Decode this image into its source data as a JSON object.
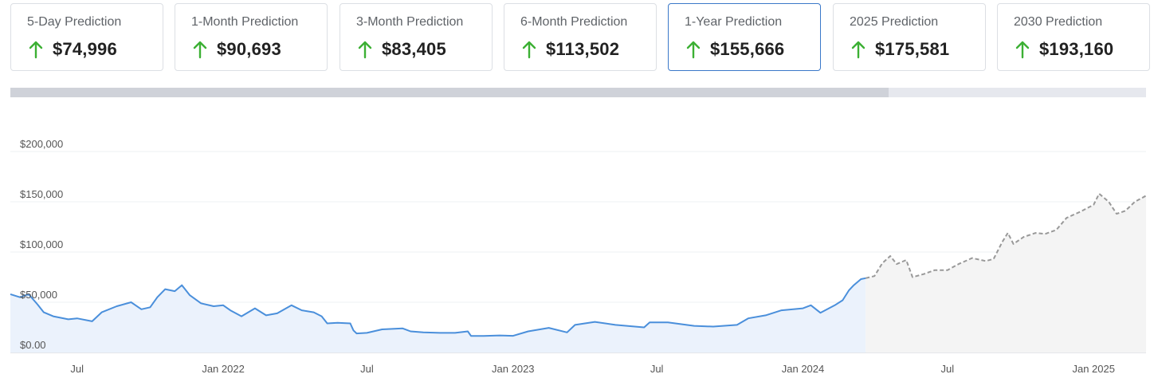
{
  "cards": [
    {
      "title": "5-Day Prediction",
      "value": "$74,996",
      "icon": "arrow-up-icon",
      "active": false
    },
    {
      "title": "1-Month Prediction",
      "value": "$90,693",
      "icon": "arrow-up-icon",
      "active": false
    },
    {
      "title": "3-Month Prediction",
      "value": "$83,405",
      "icon": "arrow-up-icon",
      "active": false
    },
    {
      "title": "6-Month Prediction",
      "value": "$113,502",
      "icon": "arrow-up-icon",
      "active": false
    },
    {
      "title": "1-Year Prediction",
      "value": "$155,666",
      "icon": "arrow-up-icon",
      "active": true
    },
    {
      "title": "2025 Prediction",
      "value": "$175,581",
      "icon": "arrow-up-icon",
      "active": false
    },
    {
      "title": "2030 Prediction",
      "value": "$193,160",
      "icon": "arrow-up-icon",
      "active": false
    }
  ],
  "colors": {
    "up_arrow": "#3cb034",
    "history_line": "#4a8fdb",
    "history_fill": "#ebf2fc",
    "forecast_line": "#999999",
    "forecast_fill": "#f4f4f4",
    "active_border": "#3a78c9"
  },
  "scroll": {
    "visible_fraction": 0.773
  },
  "chart_data": {
    "type": "line",
    "title": "",
    "xlabel": "",
    "ylabel": "",
    "ylim": [
      0,
      200000
    ],
    "yticks": [
      {
        "value": 0,
        "label": "$0.00"
      },
      {
        "value": 50000,
        "label": "$50,000"
      },
      {
        "value": 100000,
        "label": "$100,000"
      },
      {
        "value": 150000,
        "label": "$150,000"
      },
      {
        "value": 200000,
        "label": "$200,000"
      }
    ],
    "xlim": [
      "2021-04-08",
      "2025-03-08"
    ],
    "xticks": [
      {
        "date": "2021-07-01",
        "label": "Jul"
      },
      {
        "date": "2022-01-01",
        "label": "Jan 2022"
      },
      {
        "date": "2022-07-01",
        "label": "Jul"
      },
      {
        "date": "2023-01-01",
        "label": "Jan 2023"
      },
      {
        "date": "2023-07-01",
        "label": "Jul"
      },
      {
        "date": "2024-01-01",
        "label": "Jan 2024"
      },
      {
        "date": "2024-07-01",
        "label": "Jul"
      },
      {
        "date": "2025-01-01",
        "label": "Jan 2025"
      }
    ],
    "grid": true,
    "legend": "none",
    "series": [
      {
        "kind": "historical",
        "points": [
          [
            "2021-04-08",
            58000
          ],
          [
            "2021-04-20",
            55000
          ],
          [
            "2021-05-01",
            58000
          ],
          [
            "2021-05-12",
            48000
          ],
          [
            "2021-05-20",
            40000
          ],
          [
            "2021-06-01",
            36000
          ],
          [
            "2021-06-20",
            33000
          ],
          [
            "2021-07-01",
            34000
          ],
          [
            "2021-07-20",
            31000
          ],
          [
            "2021-08-01",
            40000
          ],
          [
            "2021-08-20",
            46000
          ],
          [
            "2021-09-07",
            50000
          ],
          [
            "2021-09-20",
            43000
          ],
          [
            "2021-10-01",
            45000
          ],
          [
            "2021-10-10",
            55000
          ],
          [
            "2021-10-20",
            63000
          ],
          [
            "2021-11-01",
            61000
          ],
          [
            "2021-11-10",
            67000
          ],
          [
            "2021-11-20",
            57000
          ],
          [
            "2021-12-04",
            49000
          ],
          [
            "2021-12-20",
            46000
          ],
          [
            "2022-01-01",
            47000
          ],
          [
            "2022-01-10",
            42000
          ],
          [
            "2022-01-24",
            36000
          ],
          [
            "2022-02-10",
            44000
          ],
          [
            "2022-02-24",
            37000
          ],
          [
            "2022-03-10",
            39000
          ],
          [
            "2022-03-28",
            47000
          ],
          [
            "2022-04-10",
            42000
          ],
          [
            "2022-04-25",
            40000
          ],
          [
            "2022-05-05",
            36000
          ],
          [
            "2022-05-12",
            29000
          ],
          [
            "2022-05-25",
            29500
          ],
          [
            "2022-06-10",
            29000
          ],
          [
            "2022-06-14",
            22000
          ],
          [
            "2022-06-18",
            19000
          ],
          [
            "2022-07-01",
            19500
          ],
          [
            "2022-07-20",
            23000
          ],
          [
            "2022-08-15",
            24000
          ],
          [
            "2022-08-25",
            21000
          ],
          [
            "2022-09-10",
            20000
          ],
          [
            "2022-10-01",
            19500
          ],
          [
            "2022-10-20",
            19500
          ],
          [
            "2022-11-05",
            21000
          ],
          [
            "2022-11-09",
            16500
          ],
          [
            "2022-11-25",
            16500
          ],
          [
            "2022-12-15",
            17000
          ],
          [
            "2023-01-01",
            16600
          ],
          [
            "2023-01-20",
            21000
          ],
          [
            "2023-02-15",
            24500
          ],
          [
            "2023-03-10",
            20000
          ],
          [
            "2023-03-20",
            27500
          ],
          [
            "2023-04-14",
            30500
          ],
          [
            "2023-05-10",
            27500
          ],
          [
            "2023-06-15",
            25000
          ],
          [
            "2023-06-22",
            30000
          ],
          [
            "2023-07-15",
            30000
          ],
          [
            "2023-08-17",
            26500
          ],
          [
            "2023-09-10",
            25800
          ],
          [
            "2023-10-10",
            27500
          ],
          [
            "2023-10-24",
            34000
          ],
          [
            "2023-11-15",
            37000
          ],
          [
            "2023-12-05",
            42000
          ],
          [
            "2024-01-01",
            44000
          ],
          [
            "2024-01-11",
            47000
          ],
          [
            "2024-01-23",
            39500
          ],
          [
            "2024-02-10",
            47000
          ],
          [
            "2024-02-20",
            52000
          ],
          [
            "2024-02-28",
            62000
          ],
          [
            "2024-03-05",
            67000
          ],
          [
            "2024-03-14",
            73000
          ],
          [
            "2024-03-20",
            74000
          ]
        ]
      },
      {
        "kind": "forecast",
        "points": [
          [
            "2024-03-20",
            74000
          ],
          [
            "2024-03-31",
            76000
          ],
          [
            "2024-04-10",
            89000
          ],
          [
            "2024-04-20",
            96000
          ],
          [
            "2024-04-28",
            88000
          ],
          [
            "2024-05-10",
            92000
          ],
          [
            "2024-05-18",
            75000
          ],
          [
            "2024-06-01",
            78000
          ],
          [
            "2024-06-15",
            82000
          ],
          [
            "2024-07-01",
            82000
          ],
          [
            "2024-07-15",
            88000
          ],
          [
            "2024-08-01",
            94000
          ],
          [
            "2024-08-18",
            91000
          ],
          [
            "2024-08-28",
            93000
          ],
          [
            "2024-09-08",
            110000
          ],
          [
            "2024-09-15",
            119000
          ],
          [
            "2024-09-22",
            108000
          ],
          [
            "2024-10-05",
            115000
          ],
          [
            "2024-10-20",
            119000
          ],
          [
            "2024-11-01",
            118000
          ],
          [
            "2024-11-15",
            122000
          ],
          [
            "2024-11-28",
            134000
          ],
          [
            "2024-12-15",
            140000
          ],
          [
            "2025-01-01",
            147000
          ],
          [
            "2025-01-08",
            158000
          ],
          [
            "2025-01-20",
            150000
          ],
          [
            "2025-01-30",
            138000
          ],
          [
            "2025-02-10",
            141000
          ],
          [
            "2025-02-22",
            150000
          ],
          [
            "2025-03-08",
            156000
          ]
        ]
      }
    ]
  }
}
